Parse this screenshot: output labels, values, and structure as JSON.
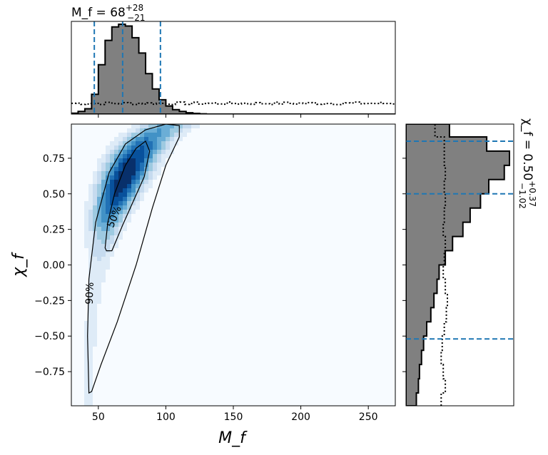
{
  "chart_data": [
    {
      "type": "heatmap",
      "title": "",
      "xlabel": "M_f",
      "ylabel": "χ_f",
      "xlim": [
        30,
        270
      ],
      "ylim": [
        -0.99,
        0.99
      ],
      "xticks": [
        "50",
        "100",
        "150",
        "200",
        "250"
      ],
      "xtick_values": [
        50,
        100,
        150,
        200,
        250
      ],
      "yticks": [
        "0.75",
        "0.50",
        "0.25",
        "0.00",
        "−0.25",
        "−0.50",
        "−0.75"
      ],
      "ytick_values": [
        0.75,
        0.5,
        0.25,
        0.0,
        -0.25,
        -0.5,
        -0.75
      ],
      "colormap": "Blues",
      "contour_labels": [
        "50%",
        "90%"
      ],
      "contour_color": "#000000",
      "contour_50": [
        [
          55,
          0.12
        ],
        [
          57,
          0.3
        ],
        [
          62,
          0.5
        ],
        [
          70,
          0.7
        ],
        [
          78,
          0.82
        ],
        [
          85,
          0.87
        ],
        [
          88,
          0.8
        ],
        [
          84,
          0.62
        ],
        [
          76,
          0.45
        ],
        [
          68,
          0.28
        ],
        [
          60,
          0.1
        ],
        [
          56,
          0.1
        ]
      ],
      "contour_90": [
        [
          43,
          -0.9
        ],
        [
          42,
          -0.5
        ],
        [
          43,
          -0.1
        ],
        [
          48,
          0.3
        ],
        [
          58,
          0.65
        ],
        [
          70,
          0.85
        ],
        [
          85,
          0.95
        ],
        [
          100,
          0.99
        ],
        [
          110,
          0.98
        ],
        [
          110,
          0.9
        ],
        [
          100,
          0.7
        ],
        [
          90,
          0.4
        ],
        [
          78,
          0.0
        ],
        [
          64,
          -0.4
        ],
        [
          52,
          -0.7
        ],
        [
          45,
          -0.89
        ]
      ],
      "density_peak": [
        72,
        0.62
      ]
    },
    {
      "type": "histogram",
      "variable": "M_f",
      "annotation_main": "M_f = 68",
      "annotation_sup": "+28",
      "annotation_sub": "−21",
      "bin_edges": [
        30,
        35,
        40,
        45,
        50,
        55,
        60,
        65,
        70,
        75,
        80,
        85,
        90,
        95,
        100,
        105,
        110,
        115,
        120,
        125,
        130
      ],
      "posterior_counts": [
        0.01,
        0.03,
        0.06,
        0.22,
        0.55,
        0.82,
        0.97,
        1.0,
        0.98,
        0.85,
        0.68,
        0.45,
        0.28,
        0.16,
        0.09,
        0.05,
        0.03,
        0.015,
        0.008,
        0.003
      ],
      "prior_level": 0.12,
      "credible_lines": [
        47,
        68,
        96
      ],
      "fill_color": "#808080",
      "line_color": "#1f77b4"
    },
    {
      "type": "histogram",
      "orientation": "horizontal",
      "variable": "χ_f",
      "annotation_main": "χ_f = 0.50",
      "annotation_sup": "+0.37",
      "annotation_sub": "−1.02",
      "bin_edges": [
        -0.99,
        -0.9,
        -0.8,
        -0.7,
        -0.6,
        -0.5,
        -0.4,
        -0.3,
        -0.2,
        -0.1,
        0.0,
        0.1,
        0.2,
        0.3,
        0.4,
        0.5,
        0.6,
        0.7,
        0.8,
        0.9,
        0.99
      ],
      "posterior_counts": [
        0.1,
        0.12,
        0.13,
        0.15,
        0.17,
        0.2,
        0.24,
        0.27,
        0.3,
        0.32,
        0.38,
        0.45,
        0.55,
        0.62,
        0.72,
        0.8,
        0.95,
        1.0,
        0.78,
        0.42
      ],
      "prior_counts": [
        0.34,
        0.38,
        0.36,
        0.34,
        0.35,
        0.37,
        0.39,
        0.4,
        0.38,
        0.36,
        0.37,
        0.38,
        0.36,
        0.37,
        0.38,
        0.37,
        0.38,
        0.37,
        0.37,
        0.28
      ],
      "credible_lines": [
        -0.52,
        0.5,
        0.87
      ],
      "fill_color": "#808080",
      "line_color": "#1f77b4"
    }
  ]
}
